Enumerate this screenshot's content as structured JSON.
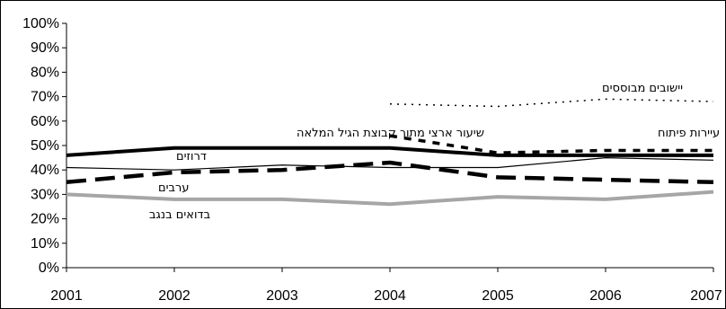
{
  "chart_data": {
    "type": "line",
    "title": "",
    "xlabel": "",
    "ylabel": "",
    "x": [
      "2001",
      "2002",
      "2003",
      "2004",
      "2005",
      "2006",
      "2007"
    ],
    "ylim": [
      0,
      100
    ],
    "y_ticks": [
      "0%",
      "10%",
      "20%",
      "30%",
      "40%",
      "50%",
      "60%",
      "70%",
      "80%",
      "90%",
      "100%"
    ],
    "grid": false,
    "series": [
      {
        "name": "שיעור ארצי מתוך קבוצת הגיל המלאה",
        "values": [
          46,
          49,
          49,
          49,
          46,
          46,
          46
        ],
        "color": "#000000",
        "style": "thick-solid"
      },
      {
        "name": "יישובים מבוססים",
        "values": [
          null,
          null,
          null,
          67,
          66,
          69,
          68
        ],
        "color": "#000000",
        "style": "dotted"
      },
      {
        "name": "עיירות פיתוח",
        "values": [
          null,
          null,
          null,
          54,
          47,
          48,
          48
        ],
        "color": "#000000",
        "style": "short-dash"
      },
      {
        "name": "דרוזים",
        "values": [
          41,
          40,
          42,
          41,
          41,
          45,
          44
        ],
        "color": "#000000",
        "style": "thin-solid"
      },
      {
        "name": "ערבים",
        "values": [
          35,
          39,
          40,
          43,
          37,
          36,
          35
        ],
        "color": "#000000",
        "style": "long-dash"
      },
      {
        "name": "בדואים בנגב",
        "values": [
          30,
          28,
          28,
          26,
          29,
          28,
          31
        ],
        "color": "#a6a6a6",
        "style": "thick-solid-gray"
      }
    ]
  }
}
